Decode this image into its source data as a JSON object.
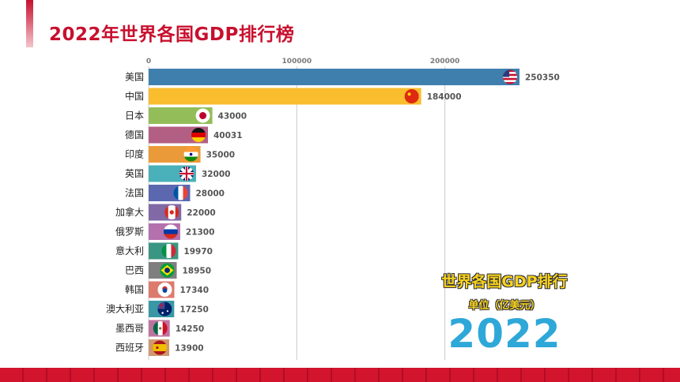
{
  "page": {
    "title": "2022年世界各国GDP排行榜"
  },
  "overlay": {
    "title": "世界各国GDP排行",
    "unit": "单位（亿美元）",
    "year": "2022"
  },
  "colors": {
    "accent": "#c8102e",
    "overlay_title": "#f7d21e",
    "year": "#2ea8d8"
  },
  "chart_data": {
    "type": "bar",
    "orientation": "horizontal",
    "xlim": [
      0,
      250350
    ],
    "ticks": [
      "0",
      "100000",
      "200000"
    ],
    "tick_values": [
      0,
      100000,
      200000
    ],
    "categories": [
      "美国",
      "中国",
      "日本",
      "德国",
      "印度",
      "英国",
      "法国",
      "加拿大",
      "俄罗斯",
      "意大利",
      "巴西",
      "韩国",
      "澳大利亚",
      "墨西哥",
      "西班牙"
    ],
    "values": [
      250350,
      184000,
      43000,
      40031,
      35000,
      32000,
      28000,
      22000,
      21300,
      19970,
      18950,
      17340,
      17250,
      14250,
      13900
    ],
    "value_labels": [
      "250350",
      "184000",
      "43000",
      "40031",
      "35000",
      "32000",
      "28000",
      "22000",
      "21300",
      "19970",
      "18950",
      "17340",
      "17250",
      "14250",
      "13900"
    ],
    "bar_colors": [
      "#3f7fae",
      "#f9bd2d",
      "#93bd58",
      "#b35f84",
      "#eb9a3a",
      "#4ab0b9",
      "#5b68b0",
      "#8069a4",
      "#b471ad",
      "#3a9683",
      "#7f7f7f",
      "#dd7a6e",
      "#3a98a6",
      "#bf739e",
      "#cf9870"
    ],
    "flags": [
      "usa-flag-icon",
      "china-flag-icon",
      "japan-flag-icon",
      "germany-flag-icon",
      "india-flag-icon",
      "uk-flag-icon",
      "france-flag-icon",
      "canada-flag-icon",
      "russia-flag-icon",
      "italy-flag-icon",
      "brazil-flag-icon",
      "south-korea-flag-icon",
      "australia-flag-icon",
      "mexico-flag-icon",
      "spain-flag-icon"
    ]
  }
}
